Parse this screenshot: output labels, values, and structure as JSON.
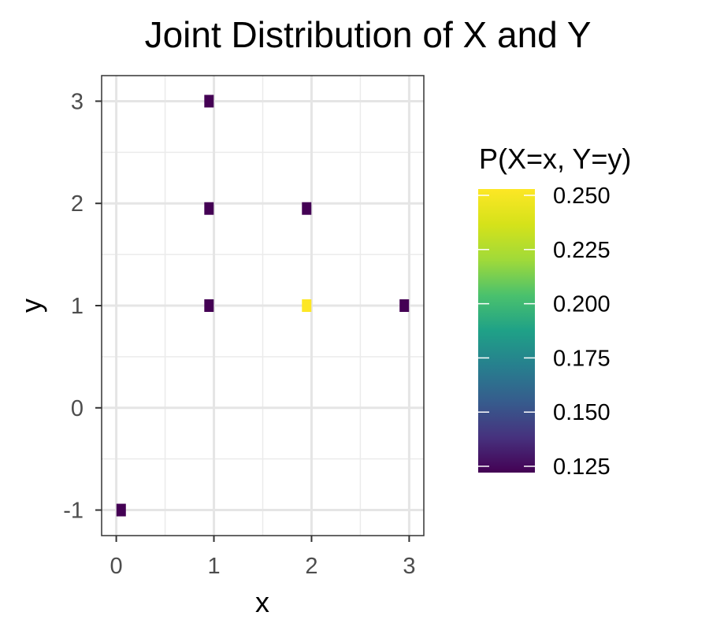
{
  "chart_data": {
    "type": "heatmap",
    "title": "Joint Distribution of X and Y",
    "xlabel": "x",
    "ylabel": "y",
    "xlim": [
      -0.15,
      3.15
    ],
    "ylim": [
      -1.25,
      3.25
    ],
    "x_ticks": [
      "0",
      "1",
      "2",
      "3"
    ],
    "y_ticks": [
      "-1",
      "0",
      "1",
      "2",
      "3"
    ],
    "grid": true,
    "points": [
      {
        "x": 0.05,
        "y": -1,
        "value": 0.125
      },
      {
        "x": 0.95,
        "y": 1,
        "value": 0.125
      },
      {
        "x": 0.95,
        "y": 1.95,
        "value": 0.125
      },
      {
        "x": 0.95,
        "y": 3,
        "value": 0.125
      },
      {
        "x": 1.95,
        "y": 1,
        "value": 0.25
      },
      {
        "x": 1.95,
        "y": 1.95,
        "value": 0.125
      },
      {
        "x": 2.95,
        "y": 1,
        "value": 0.125
      }
    ],
    "legend": {
      "title": "P(X=x, Y=y)",
      "placement": "right",
      "range": [
        0.125,
        0.25
      ],
      "ticks": [
        "0.125",
        "0.150",
        "0.175",
        "0.200",
        "0.225",
        "0.250"
      ],
      "colormap": "viridis"
    }
  }
}
